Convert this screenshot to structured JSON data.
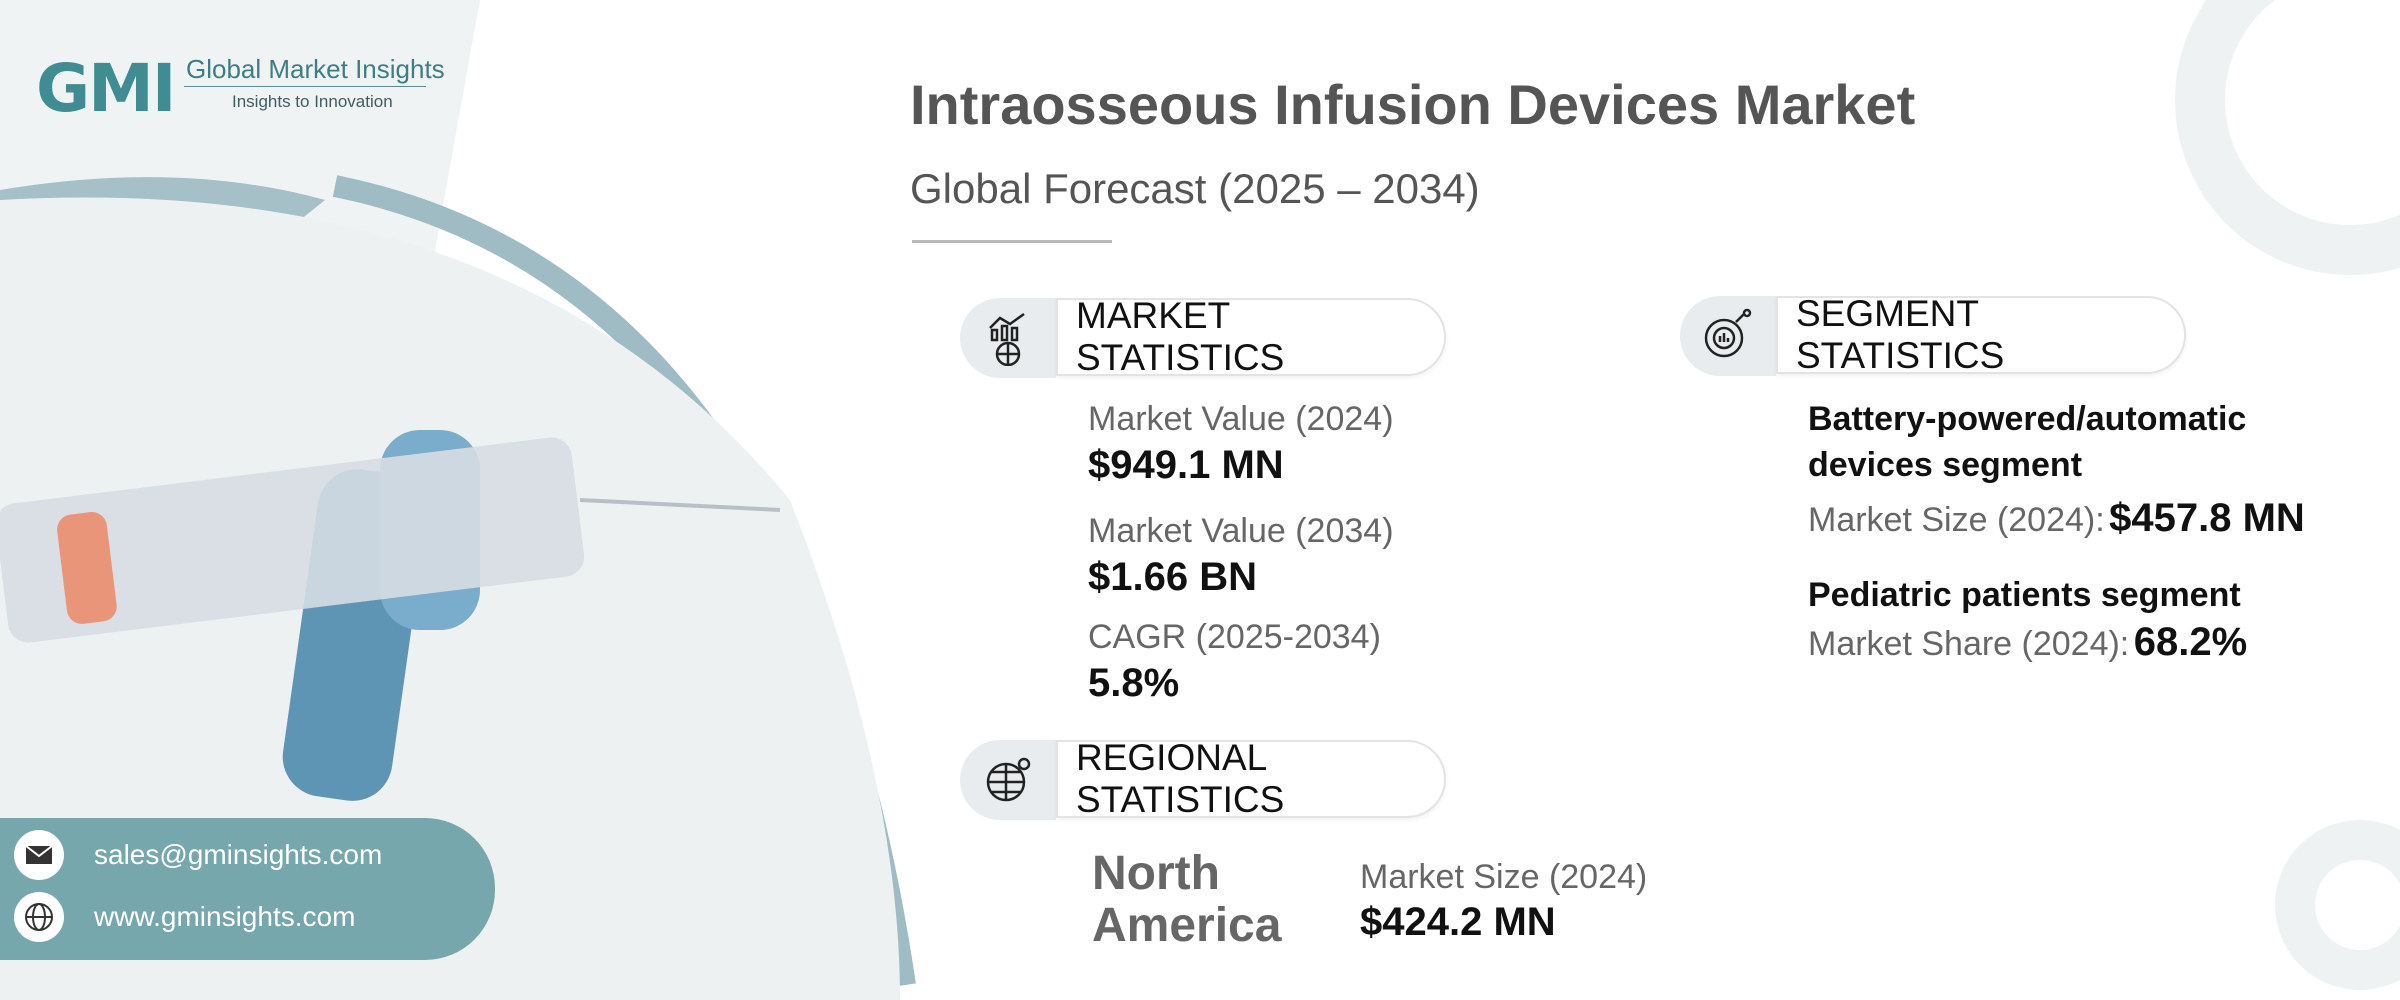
{
  "logo": {
    "mark": "GMI",
    "name": "Global Market Insights",
    "tagline": "Insights to Innovation"
  },
  "header": {
    "title": "Intraosseous Infusion Devices Market",
    "subtitle": "Global Forecast (2025 – 2034)"
  },
  "market_statistics": {
    "heading": "MARKET STATISTICS",
    "items": [
      {
        "label": "Market Value (2024)",
        "value": "$949.1 MN"
      },
      {
        "label": "Market Value (2034)",
        "value": "$1.66 BN"
      },
      {
        "label": "CAGR (2025-2034)",
        "value": "5.8%"
      }
    ]
  },
  "regional_statistics": {
    "heading": "REGIONAL STATISTICS",
    "region": "North America",
    "label": "Market Size (2024)",
    "value": "$424.2 MN"
  },
  "segment_statistics": {
    "heading": "SEGMENT STATISTICS",
    "items": [
      {
        "name": "Battery-powered/automatic devices segment",
        "label": "Market Size (2024):",
        "value": "$457.8 MN"
      },
      {
        "name": "Pediatric patients segment",
        "label": "Market Share (2024):",
        "value": "68.2%"
      }
    ]
  },
  "contact": {
    "email": "sales@gminsights.com",
    "website": "www.gminsights.com"
  },
  "colors": {
    "accent": "#76a7ac",
    "arc": "#9fbcc4"
  }
}
